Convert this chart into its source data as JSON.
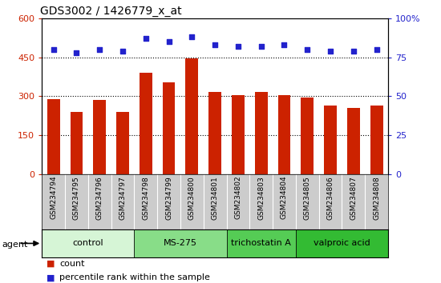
{
  "title": "GDS3002 / 1426779_x_at",
  "samples": [
    "GSM234794",
    "GSM234795",
    "GSM234796",
    "GSM234797",
    "GSM234798",
    "GSM234799",
    "GSM234800",
    "GSM234801",
    "GSM234802",
    "GSM234803",
    "GSM234804",
    "GSM234805",
    "GSM234806",
    "GSM234807",
    "GSM234808"
  ],
  "counts": [
    290,
    240,
    285,
    240,
    390,
    355,
    445,
    315,
    305,
    315,
    305,
    295,
    265,
    255,
    265
  ],
  "percentiles": [
    80,
    78,
    80,
    79,
    87,
    85,
    88,
    83,
    82,
    82,
    83,
    80,
    79,
    79,
    80
  ],
  "bar_color": "#cc2200",
  "dot_color": "#2222cc",
  "ylim_left": [
    0,
    600
  ],
  "ylim_right": [
    0,
    100
  ],
  "yticks_left": [
    0,
    150,
    300,
    450,
    600
  ],
  "yticks_right": [
    0,
    25,
    50,
    75,
    100
  ],
  "groups": [
    {
      "label": "control",
      "start": 0,
      "end": 4,
      "color": "#d6f5d6"
    },
    {
      "label": "MS-275",
      "start": 4,
      "end": 8,
      "color": "#88dd88"
    },
    {
      "label": "trichostatin A",
      "start": 8,
      "end": 11,
      "color": "#55cc55"
    },
    {
      "label": "valproic acid",
      "start": 11,
      "end": 15,
      "color": "#33bb33"
    }
  ],
  "agent_label": "agent",
  "legend_count_label": "count",
  "legend_pct_label": "percentile rank within the sample",
  "left_tick_color": "#cc2200",
  "right_tick_color": "#2222cc",
  "sample_bg_color": "#cccccc",
  "hgrid_color": "black",
  "hgrid_style": ":",
  "hgrid_lw": 0.8
}
